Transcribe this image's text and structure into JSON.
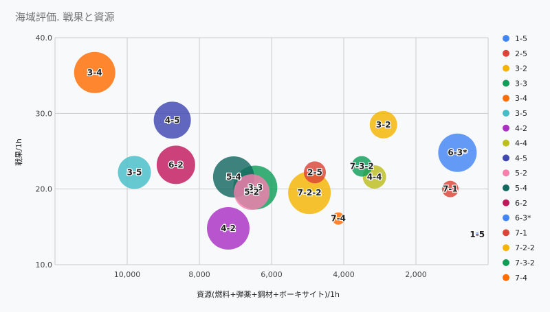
{
  "chart_data": {
    "type": "bubble",
    "title": "海域評価. 戦果と資源",
    "xlabel": "資源(燃料+弾薬+鋼材+ボーキサイト)/1h",
    "ylabel": "戦果/1h",
    "xlim": [
      12000,
      0
    ],
    "ylim": [
      10,
      40
    ],
    "x_reversed": true,
    "x_ticks": [
      10000,
      8000,
      6000,
      4000,
      2000
    ],
    "x_tick_labels": [
      "10,000",
      "8,000",
      "6,000",
      "4,000",
      "2,000"
    ],
    "y_ticks": [
      10,
      20,
      30,
      40
    ],
    "y_tick_labels": [
      "10.0",
      "20.0",
      "30.0",
      "40.0"
    ],
    "grid": true,
    "legend_position": "right",
    "points": [
      {
        "name": "1-5",
        "x": 300,
        "y": 14.0,
        "size": 3,
        "color": "#4285f4"
      },
      {
        "name": "2-5",
        "x": 4800,
        "y": 22.2,
        "size": 16,
        "color": "#db4437"
      },
      {
        "name": "3-2",
        "x": 2900,
        "y": 28.5,
        "size": 20,
        "color": "#f4b400"
      },
      {
        "name": "3-3",
        "x": 6450,
        "y": 20.2,
        "size": 32,
        "color": "#0f9d58"
      },
      {
        "name": "3-4",
        "x": 10900,
        "y": 35.4,
        "size": 30,
        "color": "#ff6d01"
      },
      {
        "name": "3-5",
        "x": 9800,
        "y": 22.2,
        "size": 24,
        "color": "#46bdc6"
      },
      {
        "name": "4-2",
        "x": 7200,
        "y": 14.8,
        "size": 31,
        "color": "#ab30c4"
      },
      {
        "name": "4-4",
        "x": 3150,
        "y": 21.6,
        "size": 17,
        "color": "#bdbd1e"
      },
      {
        "name": "4-5",
        "x": 8750,
        "y": 29.1,
        "size": 27,
        "color": "#3f47b0"
      },
      {
        "name": "5-2",
        "x": 6550,
        "y": 19.6,
        "size": 26,
        "color": "#f77fae"
      },
      {
        "name": "5-4",
        "x": 7050,
        "y": 21.6,
        "size": 30,
        "color": "#13685f"
      },
      {
        "name": "6-2",
        "x": 8650,
        "y": 23.2,
        "size": 28,
        "color": "#c2185b"
      },
      {
        "name": "6-3*",
        "x": 850,
        "y": 24.8,
        "size": 28,
        "color": "#4285f4"
      },
      {
        "name": "7-1",
        "x": 1050,
        "y": 20.0,
        "size": 12,
        "color": "#db4437"
      },
      {
        "name": "7-2-2",
        "x": 4950,
        "y": 19.5,
        "size": 31,
        "color": "#f4b400"
      },
      {
        "name": "7-3-2",
        "x": 3500,
        "y": 23.0,
        "size": 15,
        "color": "#0f9d58"
      },
      {
        "name": "7-4",
        "x": 4150,
        "y": 16.1,
        "size": 9,
        "color": "#ff6d01"
      }
    ]
  }
}
